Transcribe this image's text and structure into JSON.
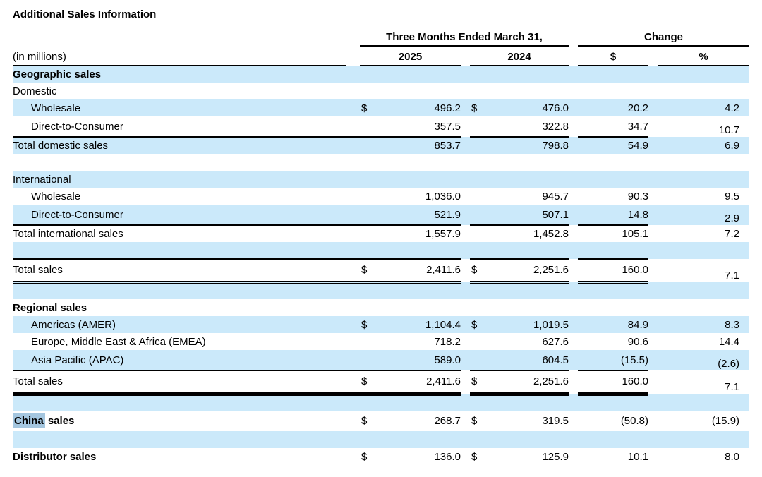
{
  "title": "Additional Sales Information",
  "units_label": "(in millions)",
  "columns": {
    "period_group": "Three Months Ended March 31,",
    "change_group": "Change",
    "year_2025": "2025",
    "year_2024": "2024",
    "change_dollar": "$",
    "change_percent": "%"
  },
  "colors": {
    "row_highlight": "#cbe9fa",
    "search_highlight": "#a4c6df",
    "rule": "#000000",
    "text": "#000000"
  },
  "table_rows": [
    {
      "kind": "section",
      "label": "Geographic sales",
      "bold": true,
      "shaded": true
    },
    {
      "kind": "group",
      "label": "Domestic"
    },
    {
      "kind": "item",
      "label": "Wholesale",
      "indent": true,
      "shaded": true,
      "d25": "$",
      "v25": "496.2",
      "d24": "$",
      "v24": "476.0",
      "chg": "20.2",
      "pct": "4.2"
    },
    {
      "kind": "item",
      "label": "Direct-to-Consumer",
      "indent": true,
      "tall": true,
      "v25": "357.5",
      "v24": "322.8",
      "chg": "34.7",
      "pct": "10.7",
      "pct_low": true
    },
    {
      "kind": "subtotal",
      "label": "Total domestic sales",
      "shaded": true,
      "rule_top": true,
      "v25": "853.7",
      "v24": "798.8",
      "chg": "54.9",
      "pct": "6.9"
    },
    {
      "kind": "blank"
    },
    {
      "kind": "group",
      "label": "International",
      "shaded": true
    },
    {
      "kind": "item",
      "label": "Wholesale",
      "indent": true,
      "v25": "1,036.0",
      "v24": "945.7",
      "chg": "90.3",
      "pct": "9.5"
    },
    {
      "kind": "item",
      "label": "Direct-to-Consumer",
      "indent": true,
      "shaded": true,
      "tall": true,
      "v25": "521.9",
      "v24": "507.1",
      "chg": "14.8",
      "pct": "2.9",
      "pct_low": true
    },
    {
      "kind": "subtotal",
      "label": "Total international sales",
      "rule_top": true,
      "v25": "1,557.9",
      "v24": "1,452.8",
      "chg": "105.1",
      "pct": "7.2"
    },
    {
      "kind": "blank",
      "shaded": true
    },
    {
      "kind": "total",
      "label": "Total sales",
      "rule_top": true,
      "rule_double": true,
      "d25": "$",
      "v25": "2,411.6",
      "d24": "$",
      "v24": "2,251.6",
      "chg": "160.0",
      "pct": "7.1",
      "pct_low": true
    },
    {
      "kind": "blank",
      "shaded": true
    },
    {
      "kind": "section",
      "label": "Regional sales",
      "bold": true
    },
    {
      "kind": "item",
      "label": "Americas (AMER)",
      "indent": true,
      "shaded": true,
      "d25": "$",
      "v25": "1,104.4",
      "d24": "$",
      "v24": "1,019.5",
      "chg": "84.9",
      "pct": "8.3"
    },
    {
      "kind": "item",
      "label": "Europe, Middle East & Africa (EMEA)",
      "indent": true,
      "v25": "718.2",
      "v24": "627.6",
      "chg": "90.6",
      "pct": "14.4"
    },
    {
      "kind": "item",
      "label": "Asia Pacific (APAC)",
      "indent": true,
      "shaded": true,
      "tall": true,
      "v25": "589.0",
      "v24": "604.5",
      "chg": "(15.5)",
      "pct": "(2.6)",
      "pct_low": true
    },
    {
      "kind": "total",
      "label": "Total sales",
      "rule_top": true,
      "rule_double": true,
      "d25": "$",
      "v25": "2,411.6",
      "d24": "$",
      "v24": "2,251.6",
      "chg": "160.0",
      "pct": "7.1",
      "pct_low": true
    },
    {
      "kind": "blank",
      "shaded": true
    },
    {
      "kind": "standalone",
      "label_highlight": "China",
      "label_rest": " sales",
      "bold": true,
      "tall": true,
      "d25": "$",
      "v25": "268.7",
      "d24": "$",
      "v24": "319.5",
      "chg": "(50.8)",
      "pct": "(15.9)"
    },
    {
      "kind": "blank",
      "shaded": true
    },
    {
      "kind": "standalone",
      "label": "Distributor sales",
      "bold": true,
      "d25": "$",
      "v25": "136.0",
      "d24": "$",
      "v24": "125.9",
      "chg": "10.1",
      "pct": "8.0"
    }
  ]
}
